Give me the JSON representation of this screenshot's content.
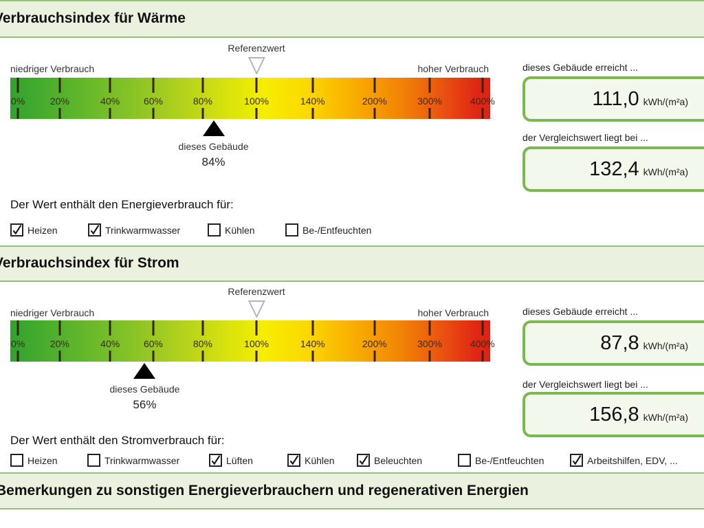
{
  "colors": {
    "band_background": "#eaf2df",
    "band_border": "#94c07c",
    "box_border": "#7cb84f",
    "box_background": "#f3f8ec",
    "scale_green": "#31a22e",
    "scale_yellow": "#f6ee00",
    "scale_red": "#dd2114",
    "marker_black": "#000000"
  },
  "scale": {
    "reference_percent": 100,
    "ticks": [
      {
        "label": "0%",
        "pos": 1.6
      },
      {
        "label": "20%",
        "pos": 10.3
      },
      {
        "label": "40%",
        "pos": 20.8
      },
      {
        "label": "60%",
        "pos": 29.8
      },
      {
        "label": "80%",
        "pos": 40.1
      },
      {
        "label": "100%",
        "pos": 51.3
      },
      {
        "label": "140%",
        "pos": 63.0
      },
      {
        "label": "200%",
        "pos": 75.9
      },
      {
        "label": "300%",
        "pos": 87.4
      },
      {
        "label": "400%",
        "pos": 98.4
      }
    ]
  },
  "sections": {
    "waerme": {
      "title": "Verbrauchsindex für Wärme",
      "reference_label": "Referenzwert",
      "low_label": "niedriger Verbrauch",
      "high_label": "hoher Verbrauch",
      "building_marker": {
        "label": "dieses Gebäude",
        "percent": 84,
        "percent_label": "84%"
      },
      "result": {
        "label": "dieses Gebäude erreicht ...",
        "value": "111,0",
        "unit": "kWh/(m²a)"
      },
      "comparison": {
        "label": "der Vergleichswert liegt bei ...",
        "value": "132,4",
        "unit": "kWh/(m²a)"
      },
      "includes_heading": "Der Wert enthält den Energieverbrauch für:",
      "checkboxes": [
        {
          "label": "Heizen",
          "checked": true
        },
        {
          "label": "Trinkwarmwasser",
          "checked": true
        },
        {
          "label": "Kühlen",
          "checked": false
        },
        {
          "label": "Be-/Entfeuchten",
          "checked": false
        }
      ]
    },
    "strom": {
      "title": "Verbrauchsindex für Strom",
      "reference_label": "Referenzwert",
      "low_label": "niedriger Verbrauch",
      "high_label": "hoher Verbrauch",
      "building_marker": {
        "label": "dieses Gebäude",
        "percent": 56,
        "percent_label": "56%"
      },
      "result": {
        "label": "dieses Gebäude erreicht ...",
        "value": "87,8",
        "unit": "kWh/(m²a)"
      },
      "comparison": {
        "label": "der Vergleichswert liegt bei ...",
        "value": "156,8",
        "unit": "kWh/(m²a)"
      },
      "includes_heading": "Der Wert enthält den Stromverbrauch für:",
      "checkboxes": [
        {
          "label": "Heizen",
          "checked": false
        },
        {
          "label": "Trinkwarmwasser",
          "checked": false
        },
        {
          "label": "Lüften",
          "checked": true
        },
        {
          "label": "Kühlen",
          "checked": true
        },
        {
          "label": "Beleuchten",
          "checked": true
        },
        {
          "label": "Be-/Entfeuchten",
          "checked": false
        },
        {
          "label": "Arbeitshilfen, EDV, ...",
          "checked": true
        }
      ]
    },
    "remarks": {
      "title": "Bemerkungen zu sonstigen Energieverbrauchern und regenerativen Energien"
    }
  }
}
